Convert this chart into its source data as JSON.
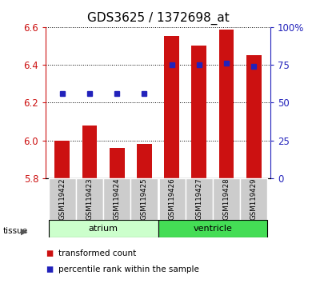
{
  "title": "GDS3625 / 1372698_at",
  "samples": [
    "GSM119422",
    "GSM119423",
    "GSM119424",
    "GSM119425",
    "GSM119426",
    "GSM119427",
    "GSM119428",
    "GSM119429"
  ],
  "bar_values": [
    6.0,
    6.08,
    5.96,
    5.98,
    6.55,
    6.5,
    6.585,
    6.45
  ],
  "bar_base": 5.8,
  "blue_values_pct": [
    56,
    56,
    56,
    56,
    75,
    75,
    76,
    74
  ],
  "ylim": [
    5.8,
    6.6
  ],
  "y2lim": [
    0,
    100
  ],
  "yticks": [
    5.8,
    6.0,
    6.2,
    6.4,
    6.6
  ],
  "y2ticks": [
    0,
    25,
    50,
    75,
    100
  ],
  "bar_color": "#cc1111",
  "blue_color": "#2222bb",
  "grid_color": "#000000",
  "tissue_groups": [
    {
      "label": "atrium",
      "start": 0,
      "end": 4,
      "color": "#ccffcc"
    },
    {
      "label": "ventricle",
      "start": 4,
      "end": 8,
      "color": "#44dd55"
    }
  ],
  "tick_color_left": "#cc1111",
  "tick_color_right": "#2222bb",
  "legend_items": [
    {
      "label": "transformed count",
      "color": "#cc1111"
    },
    {
      "label": "percentile rank within the sample",
      "color": "#2222bb"
    }
  ],
  "sample_bg_color": "#cccccc",
  "title_fontsize": 11,
  "tick_fontsize": 8.5,
  "bar_width": 0.55
}
